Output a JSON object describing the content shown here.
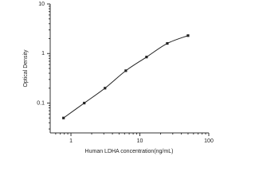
{
  "chart_data": {
    "type": "scatter",
    "x_label": "Human LDHA concentration(ng/mL)",
    "y_label": "Optical Density",
    "x": [
      0.78,
      1.56,
      3.12,
      6.25,
      12.5,
      25,
      50
    ],
    "series": [
      {
        "color": "#222222",
        "values": [
          0.05,
          0.1,
          0.2,
          0.45,
          0.85,
          1.6,
          2.3
        ]
      }
    ],
    "xlim": [
      0.5,
      100
    ],
    "ylim": [
      0.025,
      10
    ],
    "xticks": [
      1,
      10,
      100
    ],
    "yticks": [
      0.1,
      1,
      10
    ],
    "xscale": "log",
    "yscale": "log",
    "fit_line": true,
    "grid": false
  }
}
